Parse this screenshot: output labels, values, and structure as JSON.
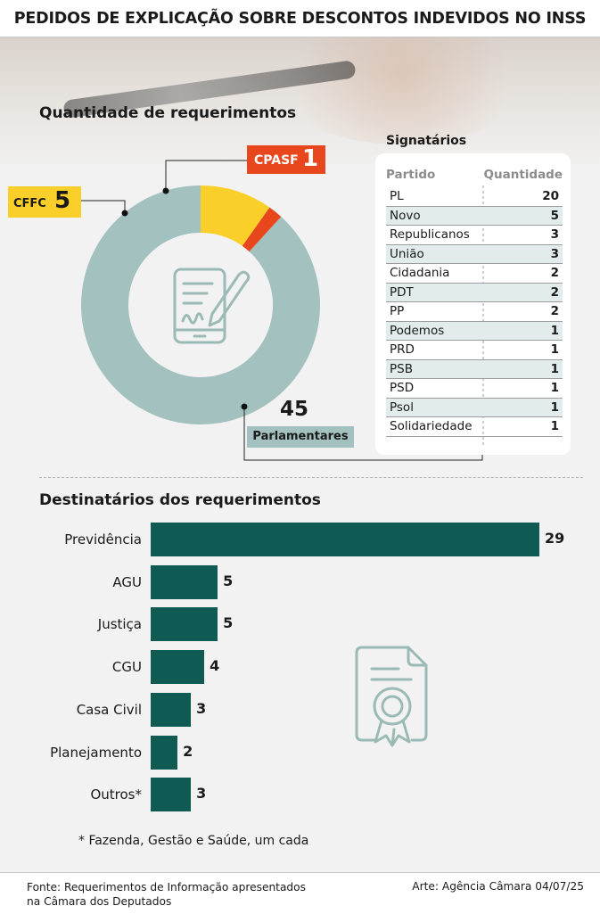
{
  "header": {
    "title": "PEDIDOS DE EXPLICAÇÃO SOBRE DESCONTOS INDEVIDOS NO INSS"
  },
  "colors": {
    "parlamentares": "#a3c1be",
    "cffc": "#fbcf2a",
    "cpasf": "#e8461c",
    "bars": "#0f5a52"
  },
  "icons": {
    "donut_center": "phone-document-pen-icon",
    "bar_area": "certificate-icon"
  },
  "chart_data": [
    {
      "type": "pie",
      "title": "Quantidade de requerimentos",
      "categories": [
        "Parlamentares",
        "CFFC",
        "CPASF"
      ],
      "values": [
        45,
        5,
        1
      ]
    },
    {
      "type": "table",
      "title": "Signatários",
      "columns": [
        "Partido",
        "Quantidade"
      ],
      "rows": [
        [
          "PL",
          20
        ],
        [
          "Novo",
          5
        ],
        [
          "Republicanos",
          3
        ],
        [
          "União",
          3
        ],
        [
          "Cidadania",
          2
        ],
        [
          "PDT",
          2
        ],
        [
          "PP",
          2
        ],
        [
          "Podemos",
          1
        ],
        [
          "PRD",
          1
        ],
        [
          "PSB",
          1
        ],
        [
          "PSD",
          1
        ],
        [
          "Psol",
          1
        ],
        [
          "Solidariedade",
          1
        ]
      ]
    },
    {
      "type": "bar",
      "title": "Destinatários dos requerimentos",
      "categories": [
        "Previdência",
        "AGU",
        "Justiça",
        "CGU",
        "Casa Civil",
        "Planejamento",
        "Outros*"
      ],
      "values": [
        29,
        5,
        5,
        4,
        3,
        2,
        3
      ],
      "xlim": [
        0,
        29
      ],
      "note": "* Fazenda, Gestão e Saúde, um cada"
    }
  ],
  "footer": {
    "source": "Fonte: Requerimentos de Informação apresentados na Câmara dos Deputados",
    "credit": "Arte: Agência Câmara 04/07/25"
  }
}
